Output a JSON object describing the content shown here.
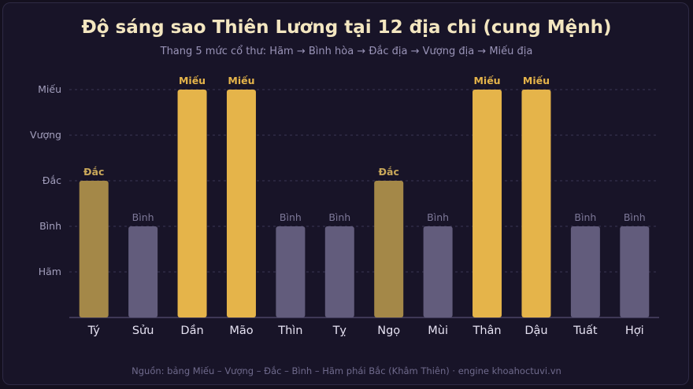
{
  "header": {
    "title": "Độ sáng sao Thiên Lương tại 12 địa chi (cung Mệnh)",
    "subtitle": "Thang 5 mức cổ thư: Hãm → Bình hòa → Đắc địa → Vượng địa → Miếu địa"
  },
  "footer": {
    "source": "Nguồn: bảng Miếu – Vượng – Đắc – Bình – Hãm phái Bắc (Khâm Thiên) · engine khoahoctuvi.vn"
  },
  "colors": {
    "mieu": "#e5b44a",
    "dac": "#a48848",
    "binh": "#625c7c",
    "label_mieu": "#e5b44a",
    "label_dac": "#c9a85a",
    "label_binh": "#7d7898",
    "axis_text": "#a39fbd",
    "grid": "#3a3654"
  },
  "chart_data": {
    "type": "bar",
    "title": "Độ sáng sao Thiên Lương tại 12 địa chi (cung Mệnh)",
    "subtitle": "Thang 5 mức cổ thư: Hãm → Bình hòa → Đắc địa → Vượng địa → Miếu địa",
    "categories": [
      "Tý",
      "Sửu",
      "Dần",
      "Mão",
      "Thìn",
      "Tỵ",
      "Ngọ",
      "Mùi",
      "Thân",
      "Dậu",
      "Tuất",
      "Hợi"
    ],
    "values": [
      3,
      2,
      5,
      5,
      2,
      2,
      3,
      2,
      5,
      5,
      2,
      2
    ],
    "value_labels": [
      "Đắc",
      "Bình",
      "Miếu",
      "Miếu",
      "Bình",
      "Bình",
      "Đắc",
      "Bình",
      "Miếu",
      "Miếu",
      "Bình",
      "Bình"
    ],
    "y_tick_values": [
      1,
      2,
      3,
      4,
      5
    ],
    "y_tick_labels": [
      "Hãm",
      "Bình",
      "Đắc",
      "Vượng",
      "Miếu"
    ],
    "ylim": [
      0,
      5
    ],
    "xlabel": "",
    "ylabel": "",
    "grid": true
  }
}
